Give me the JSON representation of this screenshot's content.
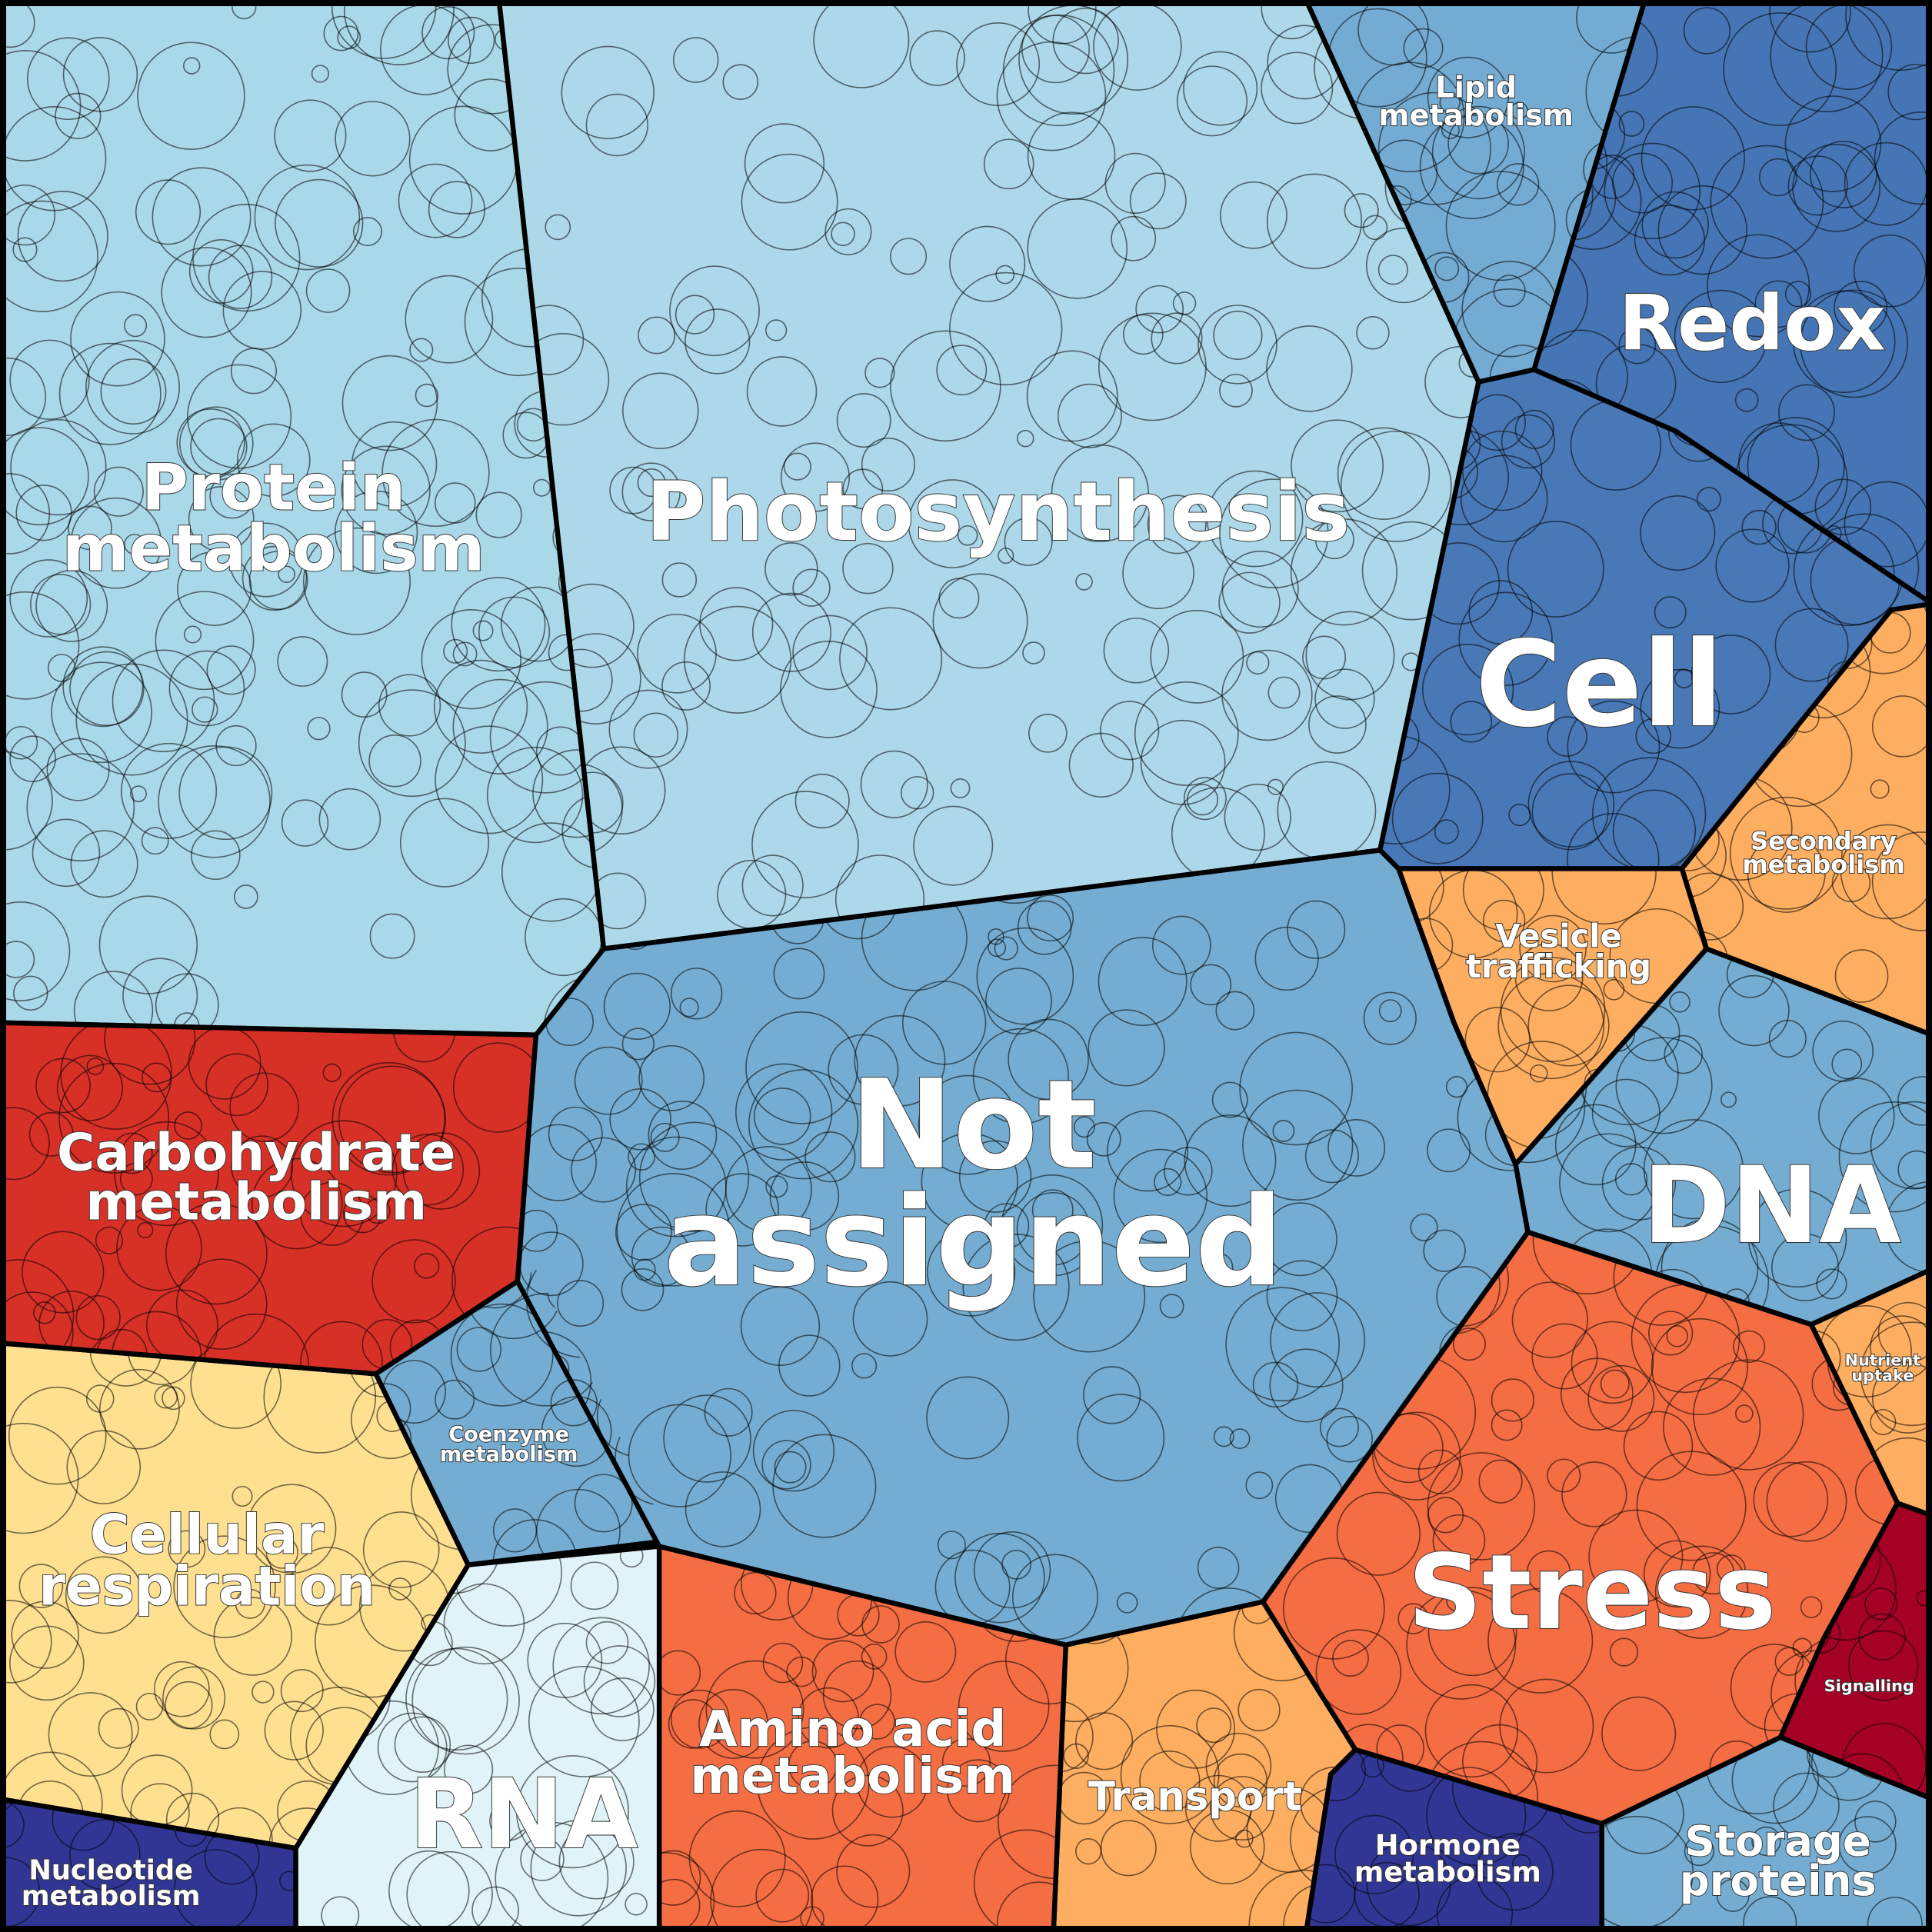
{
  "regions": [
    {
      "id": "protein",
      "lines": [
        "Protein",
        "metabolism"
      ],
      "color": "#a9d8e8"
    },
    {
      "id": "photosynthesis",
      "lines": [
        "Photosynthesis"
      ],
      "color": "#acd8e9"
    },
    {
      "id": "lipid",
      "lines": [
        "Lipid",
        "metabolism"
      ],
      "color": "#74abd2"
    },
    {
      "id": "redox",
      "lines": [
        "Redox"
      ],
      "color": "#4575b4"
    },
    {
      "id": "cell",
      "lines": [
        "Cell"
      ],
      "color": "#4878b6"
    },
    {
      "id": "secondary",
      "lines": [
        "Secondary",
        "metabolism"
      ],
      "color": "#fdae61"
    },
    {
      "id": "vesicle",
      "lines": [
        "Vesicle",
        "trafficking"
      ],
      "color": "#fdae61"
    },
    {
      "id": "dna",
      "lines": [
        "DNA"
      ],
      "color": "#74add1"
    },
    {
      "id": "nutrient",
      "lines": [
        "Nutrient",
        "uptake"
      ],
      "color": "#fdae61"
    },
    {
      "id": "stress",
      "lines": [
        "Stress"
      ],
      "color": "#f46d43"
    },
    {
      "id": "signalling",
      "lines": [
        "Signalling"
      ],
      "color": "#a50026"
    },
    {
      "id": "storage",
      "lines": [
        "Storage",
        "proteins"
      ],
      "color": "#74add1"
    },
    {
      "id": "hormone",
      "lines": [
        "Hormone",
        "metabolism"
      ],
      "color": "#313695"
    },
    {
      "id": "transport",
      "lines": [
        "Transport"
      ],
      "color": "#fdae61"
    },
    {
      "id": "aminoacid",
      "lines": [
        "Amino acid",
        "metabolism"
      ],
      "color": "#f46d43"
    },
    {
      "id": "rna",
      "lines": [
        "RNA"
      ],
      "color": "#e0f3f8"
    },
    {
      "id": "respiration",
      "lines": [
        "Cellular",
        "respiration"
      ],
      "color": "#fee090"
    },
    {
      "id": "nucleotide",
      "lines": [
        "Nucleotide",
        "metabolism"
      ],
      "color": "#313695"
    },
    {
      "id": "carbohydrate",
      "lines": [
        "Carbohydrate",
        "metabolism"
      ],
      "color": "#d73027"
    },
    {
      "id": "coenzyme",
      "lines": [
        "Coenzyme",
        "metabolism"
      ],
      "color": "#74add1"
    },
    {
      "id": "notassigned",
      "lines": [
        "Not",
        "assigned"
      ],
      "color": "#74add1"
    }
  ]
}
